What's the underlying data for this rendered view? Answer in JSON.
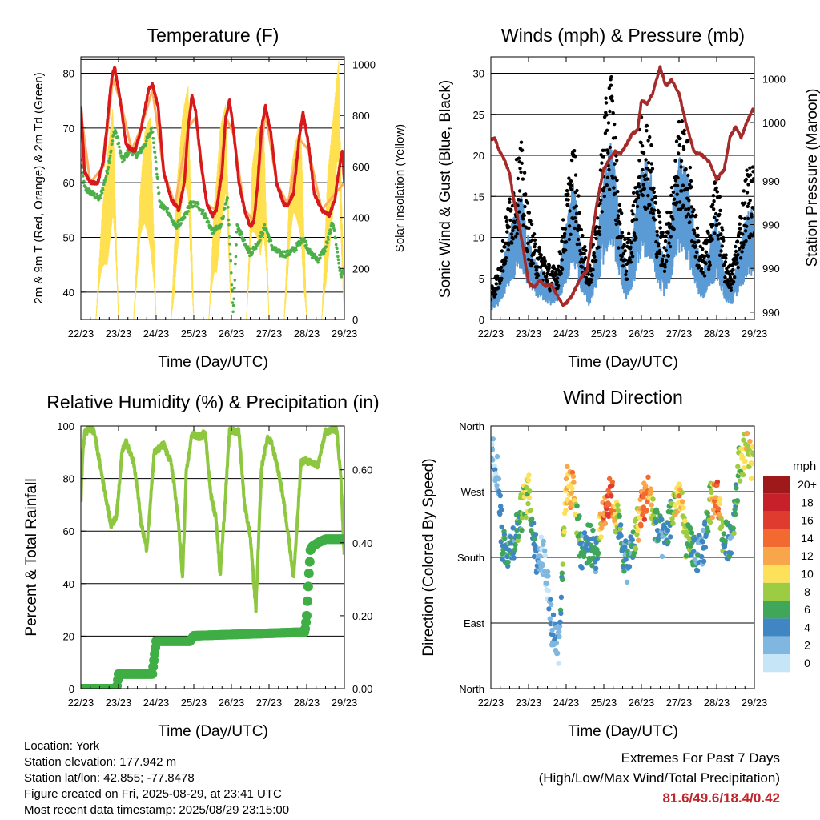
{
  "x_ticks": [
    "22/23",
    "23/23",
    "24/23",
    "25/23",
    "26/23",
    "27/23",
    "28/23",
    "29/23"
  ],
  "temperature": {
    "title": "Temperature (F)",
    "xlabel": "Time (Day/UTC)",
    "ylabel_left": "2m & 9m T (Red, Orange) & 2m Td (Green)",
    "ylabel_right": "Solar Insolation (Yellow)",
    "left_ticks": [
      "40",
      "50",
      "60",
      "70",
      "80"
    ],
    "right_ticks": [
      "0",
      "200",
      "400",
      "600",
      "800",
      "1000"
    ],
    "colors": {
      "t2m": "#d7191c",
      "t9m": "#fdae61",
      "td": "#4daf4a",
      "solar": "#fee050"
    }
  },
  "winds": {
    "title": "Winds (mph) & Pressure (mb)",
    "xlabel": "Time (Day/UTC)",
    "ylabel_left": "Sonic Wind & Gust (Blue, Black)",
    "ylabel_right": "Station Pressure (Maroon)",
    "left_ticks": [
      "0",
      "5",
      "10",
      "15",
      "20",
      "25",
      "30"
    ],
    "right_ticks": [
      "990",
      "990",
      "990",
      "990",
      "1000",
      "1000"
    ],
    "colors": {
      "wind": "#5b9bd5",
      "gust": "#000000",
      "pressure": "#a52a2a"
    }
  },
  "humidity": {
    "title": "Relative Humidity (%) & Precipitation (in)",
    "xlabel": "Time (Day/UTC)",
    "ylabel_left": "Percent & Total Rainfall",
    "left_ticks": [
      "0",
      "20",
      "40",
      "60",
      "80",
      "100"
    ],
    "right_ticks": [
      "0.00",
      "0.20",
      "0.40",
      "0.60"
    ],
    "colors": {
      "rh": "#8dc63f",
      "precip": "#3fae45"
    }
  },
  "direction": {
    "title": "Wind Direction",
    "xlabel": "Time (Day/UTC)",
    "ylabel_left": "Direction (Colored By Speed)",
    "left_ticks": [
      "North",
      "East",
      "South",
      "West",
      "North"
    ],
    "legend_title": "mph",
    "legend_labels": [
      "20+",
      "18",
      "16",
      "14",
      "12",
      "10",
      "8",
      "6",
      "4",
      "2",
      "0"
    ],
    "legend_colors": [
      "#9e1a1a",
      "#c8202a",
      "#e03b2f",
      "#f26a30",
      "#f9a54a",
      "#fde15a",
      "#9ccc41",
      "#3fa65a",
      "#3f86c2",
      "#7fb7e0",
      "#c6e6f7"
    ]
  },
  "info": {
    "location": "Location: York",
    "elevation": "Station elevation: 177.942 m",
    "latlon": "Station lat/lon: 42.855; -77.8478",
    "created": "Figure created on Fri, 2025-08-29, at 23:41 UTC",
    "recent": "Most recent data timestamp: 2025/08/29 23:15:00"
  },
  "extremes": {
    "line1": "Extremes For Past 7 Days",
    "line2": "(High/Low/Max Wind/Total Precipitation)",
    "values": "81.6/49.6/18.4/0.42"
  },
  "chart_data": [
    {
      "type": "line",
      "title": "Temperature (F)",
      "xlabel": "Time (Day/UTC)",
      "ylabel": "2m & 9m T (Red, Orange) & 2m Td (Green)",
      "y2label": "Solar Insolation (Yellow)",
      "ylim": [
        35,
        83
      ],
      "y2lim": [
        0,
        1030
      ],
      "x_days": [
        22,
        23,
        24,
        25,
        26,
        27,
        28,
        29
      ],
      "series": [
        {
          "name": "2m T",
          "x": [
            22.0,
            22.1,
            22.25,
            22.45,
            22.6,
            22.8,
            22.85,
            22.9,
            23.05,
            23.2,
            23.35,
            23.45,
            23.6,
            23.8,
            23.9,
            24.05,
            24.2,
            24.4,
            24.5,
            24.6,
            24.75,
            24.85,
            24.95,
            25.05,
            25.2,
            25.35,
            25.5,
            25.6,
            25.75,
            25.85,
            25.95,
            26.05,
            26.2,
            26.35,
            26.5,
            26.6,
            26.7,
            26.8,
            26.9,
            27.05,
            27.2,
            27.4,
            27.5,
            27.65,
            27.8,
            27.9,
            28.05,
            28.2,
            28.4,
            28.6,
            28.75,
            28.85,
            28.95,
            29.0
          ],
          "values": [
            74,
            62,
            60,
            60,
            64,
            78,
            80,
            81,
            75,
            67,
            66,
            66,
            70,
            77,
            78,
            74,
            62,
            57,
            56,
            55,
            60,
            70,
            76,
            73,
            63,
            56,
            54,
            55,
            62,
            72,
            75,
            70,
            60,
            55,
            52,
            53,
            60,
            70,
            74,
            69,
            60,
            56,
            56,
            58,
            68,
            73,
            67,
            58,
            55,
            54,
            57,
            62,
            66,
            60
          ]
        },
        {
          "name": "9m T",
          "x": [
            22.0,
            22.25,
            22.6,
            22.85,
            23.05,
            23.35,
            23.6,
            23.9,
            24.2,
            24.5,
            24.85,
            25.05,
            25.35,
            25.6,
            25.85,
            26.05,
            26.35,
            26.6,
            26.9,
            27.2,
            27.5,
            27.8,
            28.05,
            28.4,
            28.75,
            29.0
          ],
          "values": [
            73,
            60,
            63,
            79,
            75,
            66,
            70,
            77,
            62,
            56,
            70,
            72,
            56,
            55,
            72,
            69,
            55,
            53,
            73,
            60,
            56,
            68,
            66,
            55,
            58,
            60
          ]
        },
        {
          "name": "2m Td",
          "x": [
            22.0,
            22.1,
            22.3,
            22.5,
            22.7,
            22.9,
            23.1,
            23.3,
            23.5,
            23.7,
            23.9,
            24.1,
            24.3,
            24.5,
            24.7,
            24.9,
            25.1,
            25.3,
            25.5,
            25.7,
            25.9,
            26.05,
            26.15,
            26.3,
            26.5,
            26.7,
            26.9,
            27.1,
            27.3,
            27.5,
            27.7,
            27.9,
            28.1,
            28.3,
            28.5,
            28.7,
            28.9,
            29.0
          ],
          "values": [
            64,
            59,
            58,
            57,
            62,
            70,
            64,
            66,
            65,
            67,
            70,
            56,
            55,
            52,
            53,
            56,
            56,
            54,
            51,
            52,
            57,
            36,
            52,
            50,
            47,
            49,
            52,
            48,
            47,
            47,
            48,
            50,
            47,
            46,
            48,
            53,
            43,
            44
          ]
        },
        {
          "name": "Solar Insolation",
          "x": [
            22.0,
            22.4,
            22.55,
            22.7,
            22.85,
            23.0,
            23.4,
            23.55,
            23.7,
            23.85,
            24.0,
            24.4,
            24.55,
            24.7,
            24.85,
            25.0,
            25.4,
            25.55,
            25.7,
            25.85,
            26.0,
            26.4,
            26.55,
            26.7,
            26.85,
            27.0,
            27.4,
            27.55,
            27.7,
            27.85,
            28.0,
            28.4,
            28.55,
            28.7,
            28.85,
            29.0
          ],
          "values": [
            0,
            0,
            400,
            700,
            850,
            0,
            0,
            450,
            750,
            870,
            0,
            0,
            550,
            800,
            930,
            0,
            0,
            500,
            780,
            850,
            0,
            0,
            600,
            800,
            850,
            0,
            0,
            550,
            700,
            780,
            0,
            0,
            600,
            800,
            1020,
            0
          ]
        }
      ]
    },
    {
      "type": "scatter",
      "title": "Winds (mph) & Pressure (mb)",
      "xlabel": "Time (Day/UTC)",
      "ylabel": "Sonic Wind & Gust (Blue, Black)",
      "y2label": "Station Pressure (Maroon)",
      "ylim": [
        0,
        32
      ],
      "y2lim": [
        986.5,
        1004.5
      ],
      "series": [
        {
          "name": "Sonic Wind",
          "x": [
            22.0,
            22.2,
            22.4,
            22.6,
            22.8,
            23.0,
            23.2,
            23.4,
            23.6,
            23.8,
            24.0,
            24.2,
            24.4,
            24.6,
            24.8,
            25.0,
            25.2,
            25.4,
            25.6,
            25.8,
            26.0,
            26.2,
            26.4,
            26.6,
            26.8,
            27.0,
            27.2,
            27.4,
            27.6,
            27.8,
            28.0,
            28.2,
            28.4,
            28.6,
            28.8,
            29.0
          ],
          "values": [
            2,
            3,
            6,
            9,
            11,
            7,
            5,
            4,
            3,
            4,
            8,
            12,
            6,
            3,
            6,
            12,
            16,
            9,
            4,
            8,
            13,
            14,
            8,
            5,
            9,
            14,
            13,
            8,
            4,
            6,
            9,
            4,
            3,
            6,
            9,
            10
          ]
        },
        {
          "name": "Gust",
          "x": [
            22.0,
            22.2,
            22.4,
            22.6,
            22.8,
            23.0,
            23.2,
            23.4,
            23.6,
            23.8,
            24.0,
            24.2,
            24.4,
            24.6,
            24.8,
            25.0,
            25.2,
            25.4,
            25.6,
            25.8,
            26.0,
            26.2,
            26.4,
            26.6,
            26.8,
            27.0,
            27.2,
            27.4,
            27.6,
            27.8,
            28.0,
            28.2,
            28.4,
            28.6,
            28.8,
            29.0
          ],
          "values": [
            4,
            6,
            12,
            17,
            21,
            13,
            9,
            8,
            6,
            7,
            15,
            21,
            11,
            6,
            12,
            24,
            30,
            15,
            8,
            15,
            25,
            24,
            14,
            10,
            16,
            24,
            22,
            14,
            8,
            11,
            19,
            8,
            6,
            12,
            18,
            18
          ]
        },
        {
          "name": "Station Pressure",
          "x": [
            22.0,
            22.1,
            22.2,
            22.35,
            22.5,
            22.6,
            22.75,
            22.85,
            23.0,
            23.15,
            23.3,
            23.45,
            23.6,
            23.75,
            23.9,
            24.0,
            24.15,
            24.3,
            24.45,
            24.55,
            24.7,
            24.85,
            25.0,
            25.15,
            25.3,
            25.45,
            25.6,
            25.75,
            25.9,
            26.0,
            26.15,
            26.3,
            26.5,
            26.65,
            26.8,
            27.0,
            27.2,
            27.4,
            27.6,
            27.8,
            28.0,
            28.2,
            28.35,
            28.5,
            28.65,
            28.8,
            28.95,
            29.0
          ],
          "values": [
            998.8,
            999.0,
            998.2,
            997.5,
            996.5,
            994.8,
            993.0,
            991.5,
            989.0,
            988.7,
            989.2,
            988.8,
            988.9,
            988.2,
            987.5,
            987.6,
            988.1,
            988.9,
            989.6,
            989.8,
            992.5,
            995.0,
            996.8,
            997.5,
            998.0,
            997.9,
            998.5,
            999.2,
            999.5,
            1001.5,
            1001.3,
            1002.0,
            1003.8,
            1002.5,
            1002.9,
            1002.0,
            999.8,
            998.0,
            997.8,
            997.3,
            996.1,
            996.8,
            999.0,
            999.7,
            999.0,
            1000.0,
            1000.9,
            1000.7
          ]
        }
      ]
    },
    {
      "type": "line",
      "title": "Relative Humidity (%) & Precipitation (in)",
      "xlabel": "Time (Day/UTC)",
      "ylabel": "Percent & Total Rainfall",
      "ylim": [
        0,
        100
      ],
      "y2lim": [
        0,
        0.72
      ],
      "series": [
        {
          "name": "RH",
          "x": [
            22.0,
            22.05,
            22.1,
            22.2,
            22.35,
            22.5,
            22.65,
            22.8,
            22.95,
            23.1,
            23.2,
            23.3,
            23.4,
            23.5,
            23.6,
            23.75,
            23.85,
            23.95,
            24.05,
            24.2,
            24.3,
            24.4,
            24.5,
            24.6,
            24.7,
            24.8,
            24.95,
            25.1,
            25.2,
            25.3,
            25.45,
            25.6,
            25.7,
            25.8,
            25.95,
            26.1,
            26.2,
            26.35,
            26.5,
            26.65,
            26.8,
            26.95,
            27.05,
            27.2,
            27.35,
            27.5,
            27.65,
            27.75,
            27.85,
            27.95,
            28.1,
            28.3,
            28.5,
            28.6,
            28.7,
            28.8,
            28.9,
            29.0
          ],
          "values": [
            70,
            90,
            97,
            99,
            98,
            86,
            74,
            62,
            66,
            91,
            94,
            90,
            86,
            76,
            63,
            53,
            72,
            90,
            91,
            93,
            89,
            86,
            75,
            62,
            42,
            82,
            97,
            96,
            96,
            98,
            74,
            64,
            43,
            64,
            98,
            98,
            98,
            70,
            58,
            30,
            84,
            95,
            94,
            86,
            75,
            60,
            42,
            63,
            86,
            87,
            86,
            85,
            98,
            98,
            99,
            98,
            82,
            50
          ]
        },
        {
          "name": "Total Precipitation",
          "x": [
            22.0,
            22.95,
            23.0,
            23.9,
            23.92,
            24.0,
            24.9,
            25.0,
            27.95,
            28.0,
            28.05,
            28.1,
            28.15,
            28.3,
            28.5,
            29.0
          ],
          "values": [
            0.0,
            0.0,
            0.04,
            0.04,
            0.06,
            0.13,
            0.13,
            0.145,
            0.155,
            0.2,
            0.3,
            0.38,
            0.39,
            0.4,
            0.41,
            0.41
          ]
        }
      ]
    },
    {
      "type": "scatter",
      "title": "Wind Direction",
      "xlabel": "Time (Day/UTC)",
      "ylabel": "Direction (Colored By Speed)",
      "ylim": [
        0,
        360
      ],
      "y_tick_labels": [
        "North",
        "East",
        "South",
        "West",
        "North"
      ],
      "colorbar": {
        "label": "mph",
        "ticks": [
          "0",
          "2",
          "4",
          "6",
          "8",
          "10",
          "12",
          "14",
          "16",
          "18",
          "20+"
        ]
      },
      "series": [
        {
          "name": "Direction",
          "x": [
            22.0,
            22.2,
            22.3,
            22.5,
            22.7,
            22.85,
            23.0,
            23.2,
            23.4,
            23.5,
            23.6,
            23.8,
            24.0,
            24.2,
            24.4,
            24.6,
            24.8,
            25.0,
            25.2,
            25.4,
            25.6,
            25.8,
            26.0,
            26.2,
            26.4,
            26.6,
            26.8,
            27.0,
            27.2,
            27.4,
            27.6,
            27.8,
            28.0,
            28.2,
            28.4,
            28.6,
            28.8,
            29.0
          ],
          "values": [
            330,
            290,
            200,
            190,
            220,
            250,
            270,
            185,
            180,
            150,
            90,
            60,
            280,
            270,
            190,
            200,
            185,
            250,
            265,
            220,
            170,
            200,
            250,
            270,
            220,
            200,
            240,
            270,
            200,
            190,
            180,
            250,
            270,
            200,
            210,
            310,
            330,
            300
          ],
          "speeds": [
            3,
            2,
            6,
            4,
            5,
            8,
            9,
            3,
            2,
            1,
            3,
            2,
            10,
            12,
            4,
            5,
            4,
            14,
            15,
            6,
            3,
            5,
            14,
            13,
            5,
            3,
            6,
            12,
            8,
            4,
            3,
            6,
            15,
            5,
            4,
            8,
            10,
            9
          ]
        }
      ]
    }
  ]
}
